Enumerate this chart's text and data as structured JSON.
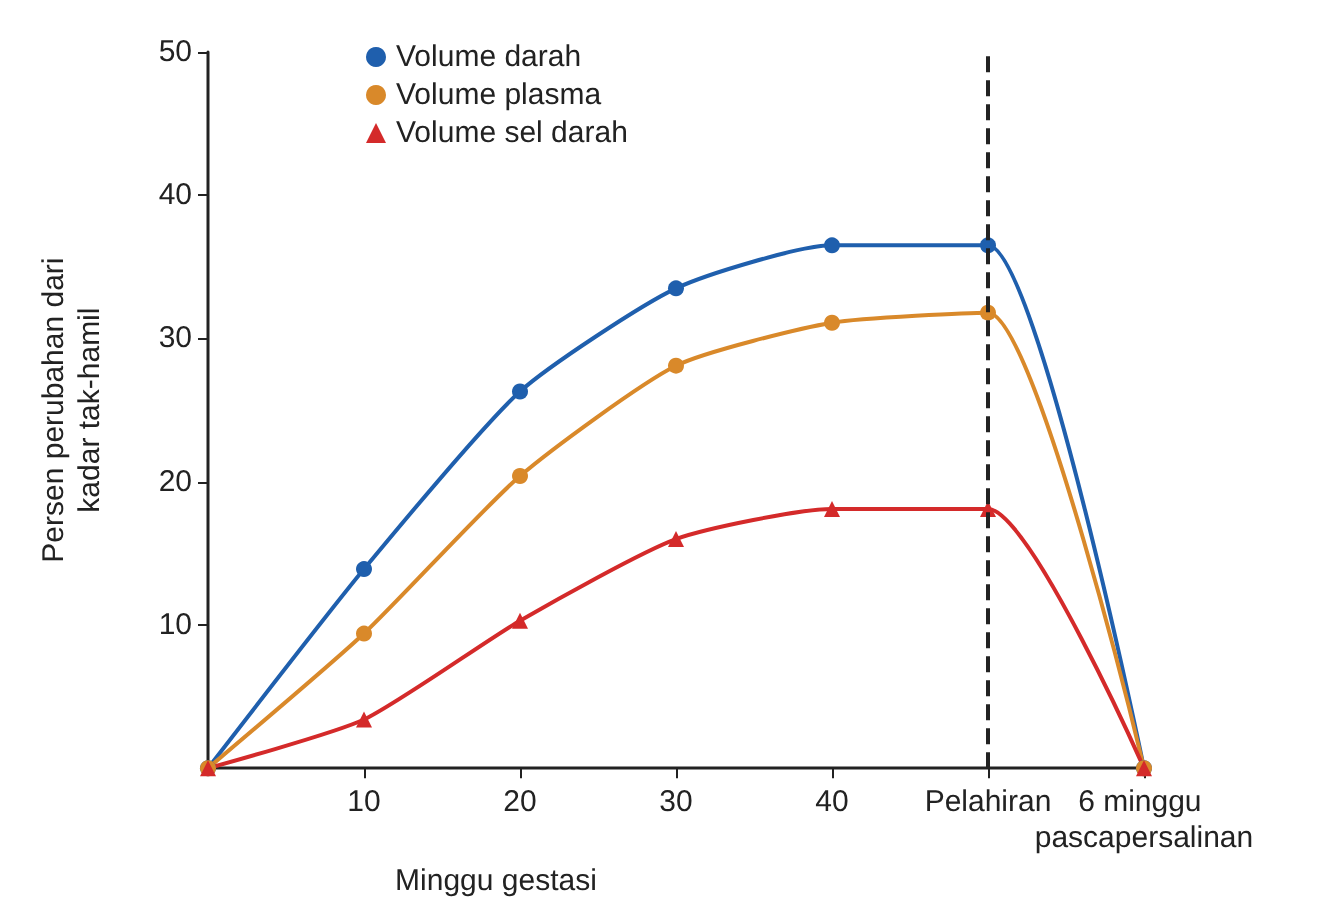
{
  "chart_data": {
    "type": "line",
    "xlabel": "Minggu gestasi",
    "ylabel": "Persen perubahan dari\nkadar tak-hamil",
    "categories": [
      null,
      "10",
      "20",
      "30",
      "40",
      "Pelahiran",
      "6 minggu pascapersalinan"
    ],
    "series": [
      {
        "name": "Volume darah",
        "color": "#1f5fad",
        "marker": "circle",
        "values": [
          0,
          13.9,
          26.3,
          33.5,
          36.5,
          36.5,
          0
        ]
      },
      {
        "name": "Volume plasma",
        "color": "#d9892a",
        "marker": "circle",
        "values": [
          0,
          9.4,
          20.4,
          28.1,
          31.1,
          31.8,
          0
        ]
      },
      {
        "name": "Volume sel darah",
        "color": "#d42a2a",
        "marker": "triangle",
        "values": [
          0,
          3.4,
          10.3,
          16.0,
          18.1,
          18.1,
          0
        ]
      }
    ],
    "ylim": [
      0,
      50
    ],
    "yticks": [
      10,
      20,
      30,
      40,
      50
    ],
    "ref_lines": [
      {
        "axis": "x",
        "value": "Pelahiran",
        "label": null,
        "color": "#222222",
        "line_style": "dashed"
      }
    ],
    "grid": false,
    "legend": "top left"
  }
}
